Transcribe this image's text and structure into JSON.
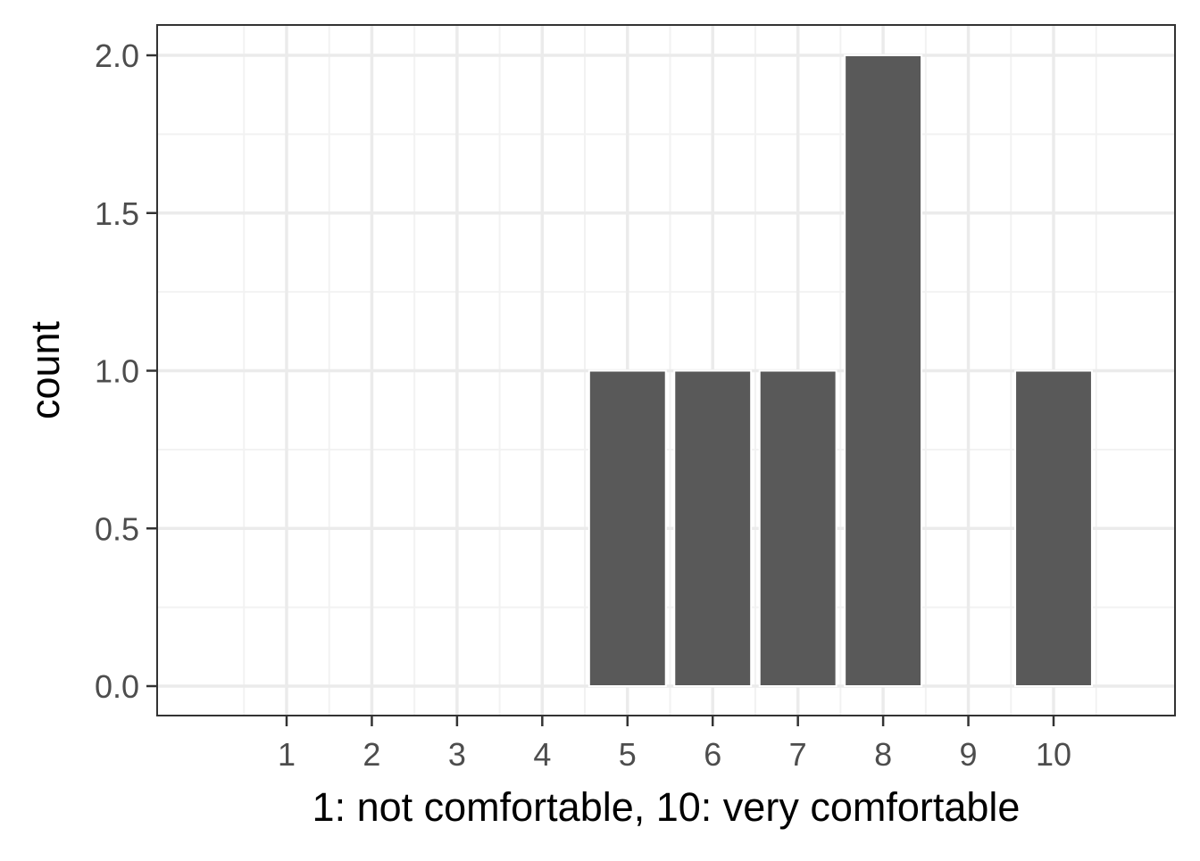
{
  "chart_data": {
    "type": "bar",
    "x": [
      5,
      6,
      7,
      8,
      10
    ],
    "values": [
      1,
      1,
      1,
      2,
      1
    ],
    "x_ticks": [
      "1",
      "2",
      "3",
      "4",
      "5",
      "6",
      "7",
      "8",
      "9",
      "10"
    ],
    "x_tick_values": [
      1,
      2,
      3,
      4,
      5,
      6,
      7,
      8,
      9,
      10
    ],
    "y_ticks": [
      "0.0",
      "0.5",
      "1.0",
      "1.5",
      "2.0"
    ],
    "y_tick_values": [
      0,
      0.5,
      1.0,
      1.5,
      2.0
    ],
    "xlim": [
      0.5,
      10.5
    ],
    "ylim": [
      0,
      2
    ],
    "title": "",
    "xlabel": "1: not comfortable, 10: very comfortable",
    "ylabel": "count",
    "grid": true,
    "legend": "none",
    "colors": {
      "bar": "#595959",
      "bar_edge": "#ffffff",
      "panel_border": "#333333",
      "grid_major": "#ebebeb",
      "grid_minor": "#f2f2f2",
      "tick_text": "#4d4d4d",
      "axis_title": "#000000"
    }
  }
}
